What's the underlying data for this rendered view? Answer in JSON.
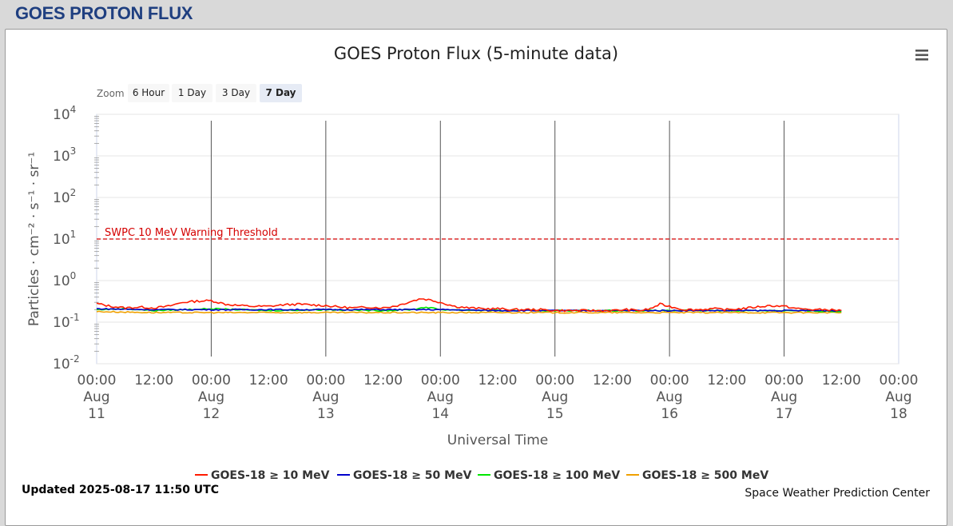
{
  "page": {
    "title": "GOES PROTON FLUX"
  },
  "zoom": {
    "label": "Zoom",
    "buttons": [
      "6 Hour",
      "1 Day",
      "3 Day",
      "7 Day"
    ],
    "selected": "7 Day"
  },
  "updated": "Updated 2025-08-17 11:50 UTC",
  "credit": "Space Weather Prediction Center",
  "menu_icon": "hamburger-menu-icon",
  "colors": {
    "ge10": "#ff1a00",
    "ge50": "#0000cc",
    "ge100": "#00e600",
    "ge500": "#f0a000",
    "threshold": "#d40000",
    "title_blue": "#1f3f80"
  },
  "chart_data": {
    "type": "line",
    "title": "GOES Proton Flux (5-minute data)",
    "xlabel": "Universal Time",
    "ylabel": "Particles · cm⁻² · s⁻¹ · sr⁻¹",
    "y_scale": "log",
    "ylim": [
      0.01,
      10000
    ],
    "y_ticks": [
      {
        "base": "10",
        "exp": "4"
      },
      {
        "base": "10",
        "exp": "3"
      },
      {
        "base": "10",
        "exp": "2"
      },
      {
        "base": "10",
        "exp": "1"
      },
      {
        "base": "10",
        "exp": "0"
      },
      {
        "base": "10",
        "exp": "-1"
      },
      {
        "base": "10",
        "exp": "-2"
      }
    ],
    "y_tick_values": [
      10000,
      1000,
      100,
      10,
      1,
      0.1,
      0.01
    ],
    "xlim": [
      "2025-08-11 00:00",
      "2025-08-18 00:00"
    ],
    "x_ticks": [
      {
        "hours": 0,
        "lines": [
          "00:00",
          "Aug",
          "11"
        ]
      },
      {
        "hours": 12,
        "lines": [
          "12:00"
        ]
      },
      {
        "hours": 24,
        "lines": [
          "00:00",
          "Aug",
          "12"
        ]
      },
      {
        "hours": 36,
        "lines": [
          "12:00"
        ]
      },
      {
        "hours": 48,
        "lines": [
          "00:00",
          "Aug",
          "13"
        ]
      },
      {
        "hours": 60,
        "lines": [
          "12:00"
        ]
      },
      {
        "hours": 72,
        "lines": [
          "00:00",
          "Aug",
          "14"
        ]
      },
      {
        "hours": 84,
        "lines": [
          "12:00"
        ]
      },
      {
        "hours": 96,
        "lines": [
          "00:00",
          "Aug",
          "15"
        ]
      },
      {
        "hours": 108,
        "lines": [
          "12:00"
        ]
      },
      {
        "hours": 120,
        "lines": [
          "00:00",
          "Aug",
          "16"
        ]
      },
      {
        "hours": 132,
        "lines": [
          "12:00"
        ]
      },
      {
        "hours": 144,
        "lines": [
          "00:00",
          "Aug",
          "17"
        ]
      },
      {
        "hours": 156,
        "lines": [
          "12:00"
        ]
      },
      {
        "hours": 168,
        "lines": [
          "00:00",
          "Aug",
          "18"
        ]
      }
    ],
    "day_lines_hours": [
      24,
      48,
      72,
      96,
      120,
      144
    ],
    "threshold": {
      "label": "SWPC 10 MeV Warning Threshold",
      "value": 10
    },
    "grid": true,
    "legend_position": "bottom",
    "series": [
      {
        "name": "GOES-18 ≥ 10 MeV",
        "color": "#ff1a00",
        "points": [
          [
            0,
            0.28
          ],
          [
            3,
            0.24
          ],
          [
            6,
            0.22
          ],
          [
            9,
            0.23
          ],
          [
            12,
            0.22
          ],
          [
            15,
            0.24
          ],
          [
            18,
            0.3
          ],
          [
            21,
            0.32
          ],
          [
            24,
            0.33
          ],
          [
            27,
            0.27
          ],
          [
            30,
            0.25
          ],
          [
            33,
            0.24
          ],
          [
            36,
            0.24
          ],
          [
            39,
            0.26
          ],
          [
            42,
            0.27
          ],
          [
            45,
            0.26
          ],
          [
            48,
            0.25
          ],
          [
            51,
            0.23
          ],
          [
            54,
            0.22
          ],
          [
            57,
            0.23
          ],
          [
            60,
            0.22
          ],
          [
            63,
            0.25
          ],
          [
            66,
            0.32
          ],
          [
            68,
            0.37
          ],
          [
            70,
            0.34
          ],
          [
            72,
            0.3
          ],
          [
            75,
            0.24
          ],
          [
            78,
            0.22
          ],
          [
            81,
            0.21
          ],
          [
            84,
            0.21
          ],
          [
            87,
            0.2
          ],
          [
            90,
            0.2
          ],
          [
            93,
            0.2
          ],
          [
            96,
            0.19
          ],
          [
            99,
            0.19
          ],
          [
            102,
            0.19
          ],
          [
            105,
            0.19
          ],
          [
            108,
            0.19
          ],
          [
            111,
            0.2
          ],
          [
            114,
            0.19
          ],
          [
            116,
            0.21
          ],
          [
            118,
            0.27
          ],
          [
            120,
            0.24
          ],
          [
            123,
            0.2
          ],
          [
            126,
            0.2
          ],
          [
            129,
            0.21
          ],
          [
            132,
            0.2
          ],
          [
            135,
            0.21
          ],
          [
            138,
            0.23
          ],
          [
            141,
            0.25
          ],
          [
            144,
            0.24
          ],
          [
            147,
            0.21
          ],
          [
            150,
            0.2
          ],
          [
            153,
            0.2
          ],
          [
            156,
            0.19
          ]
        ]
      },
      {
        "name": "GOES-18 ≥ 50 MeV",
        "color": "#0000cc",
        "points": [
          [
            0,
            0.21
          ],
          [
            12,
            0.2
          ],
          [
            24,
            0.2
          ],
          [
            36,
            0.2
          ],
          [
            48,
            0.2
          ],
          [
            60,
            0.2
          ],
          [
            72,
            0.2
          ],
          [
            84,
            0.19
          ],
          [
            96,
            0.19
          ],
          [
            108,
            0.19
          ],
          [
            120,
            0.19
          ],
          [
            132,
            0.19
          ],
          [
            144,
            0.19
          ],
          [
            156,
            0.19
          ]
        ]
      },
      {
        "name": "GOES-18 ≥ 100 MeV",
        "color": "#00e600",
        "points": [
          [
            0,
            0.2
          ],
          [
            6,
            0.21
          ],
          [
            12,
            0.19
          ],
          [
            18,
            0.2
          ],
          [
            24,
            0.21
          ],
          [
            36,
            0.19
          ],
          [
            48,
            0.2
          ],
          [
            60,
            0.19
          ],
          [
            66,
            0.2
          ],
          [
            69,
            0.23
          ],
          [
            72,
            0.2
          ],
          [
            84,
            0.19
          ],
          [
            96,
            0.19
          ],
          [
            108,
            0.19
          ],
          [
            120,
            0.19
          ],
          [
            132,
            0.19
          ],
          [
            144,
            0.19
          ],
          [
            156,
            0.18
          ]
        ]
      },
      {
        "name": "GOES-18 ≥ 500 MeV",
        "color": "#f0a000",
        "points": [
          [
            0,
            0.18
          ],
          [
            12,
            0.17
          ],
          [
            24,
            0.17
          ],
          [
            36,
            0.17
          ],
          [
            48,
            0.17
          ],
          [
            60,
            0.17
          ],
          [
            72,
            0.17
          ],
          [
            84,
            0.17
          ],
          [
            96,
            0.17
          ],
          [
            108,
            0.17
          ],
          [
            120,
            0.17
          ],
          [
            132,
            0.17
          ],
          [
            144,
            0.17
          ],
          [
            156,
            0.17
          ]
        ]
      }
    ]
  }
}
